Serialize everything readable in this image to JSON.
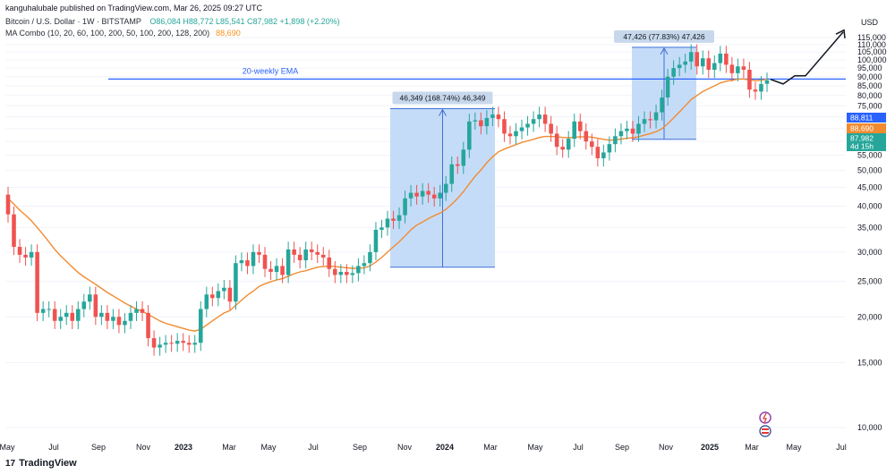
{
  "header": {
    "published": "kanguhalubale published on TradingView.com, Mar 26, 2025 09:27 UTC",
    "symbol": "Bitcoin / U.S. Dollar · 1W · BITSTAMP",
    "ohlc": {
      "O": "86,084",
      "H": "88,772",
      "L": "85,541",
      "C": "87,982",
      "change": "+1,898 (+2.20%)"
    },
    "ma_label": "MA Combo (10, 20, 60, 100, 200, 50, 100, 200, 128, 200)",
    "ma_value": "88,690"
  },
  "brand": {
    "name": "TradingView",
    "logo": "17"
  },
  "icons": {
    "lightning": "lightning-icon",
    "flag": "us-flag-icon"
  },
  "colors": {
    "up": "#26a69a",
    "down": "#ef5350",
    "ema": "#f28b30",
    "line": "#2962ff",
    "box": "#bbd6f7",
    "boxEdge": "#3f6fd8"
  },
  "chart_data": {
    "type": "candlestick",
    "y_axis": {
      "unit": "USD",
      "min": 10000,
      "max": 115000,
      "ticks": [
        115000,
        110000,
        105000,
        100000,
        95000,
        90000,
        85000,
        80000,
        75000,
        70000,
        65000,
        60000,
        55000,
        50000,
        45000,
        40000,
        35000,
        30000,
        25000,
        20000,
        15000,
        10000
      ],
      "tick_labels": [
        "115,000",
        "110,000",
        "105,000",
        "100,000",
        "95,000",
        "90,000",
        "85,000",
        "80,000",
        "75,000",
        "70,000",
        "65,000",
        "60,000",
        "55,000",
        "50,000",
        "45,000",
        "40,000",
        "35,000",
        "30,000",
        "25,000",
        "20,000",
        "15,000",
        "10,000"
      ]
    },
    "x_axis": {
      "labels": [
        "May",
        "Jul",
        "Sep",
        "Nov",
        "2023",
        "Mar",
        "May",
        "Jul",
        "Sep",
        "Nov",
        "2024",
        "Mar",
        "May",
        "Jul",
        "Sep",
        "Nov",
        "2025",
        "Mar",
        "May",
        "Jul"
      ],
      "bold": [
        "2023",
        "2024",
        "2025"
      ]
    },
    "price_tags": [
      {
        "label": "88,811",
        "color": "#2962ff"
      },
      {
        "label": "88,690",
        "color": "#f28b30"
      },
      {
        "label": "87,982",
        "color": "#26a69a"
      },
      {
        "label": "4d 15h",
        "color": "#26a69a"
      }
    ],
    "ema_line_label": "20-weekly EMA",
    "ema_line_value": 88700,
    "candles_close": [
      38000,
      31000,
      29500,
      29000,
      30000,
      20500,
      21000,
      21000,
      19500,
      20000,
      20500,
      19500,
      21000,
      22000,
      23000,
      20000,
      20500,
      19500,
      20000,
      19000,
      19500,
      20500,
      21000,
      20500,
      17500,
      16500,
      16800,
      17000,
      16900,
      17200,
      17000,
      16800,
      17000,
      21000,
      23000,
      22500,
      23500,
      24000,
      22000,
      28000,
      28500,
      27500,
      30000,
      29500,
      27000,
      26500,
      27500,
      26000,
      30500,
      29500,
      28500,
      30500,
      30000,
      29500,
      29000,
      27000,
      26000,
      26500,
      26000,
      26300,
      27500,
      28000,
      30000,
      34500,
      35000,
      37000,
      36500,
      37800,
      42000,
      43500,
      42500,
      44000,
      43000,
      42000,
      43500,
      46000,
      52000,
      51500,
      57000,
      68000,
      68500,
      66000,
      69500,
      71000,
      69000,
      63000,
      62000,
      64000,
      65500,
      67000,
      69000,
      71000,
      67000,
      63000,
      58000,
      57000,
      61000,
      68000,
      64000,
      60000,
      58000,
      54000,
      56000,
      59000,
      62000,
      64000,
      65000,
      63000,
      67000,
      69000,
      68500,
      72000,
      79000,
      90000,
      95000,
      97000,
      99000,
      105000,
      96000,
      101000,
      94000,
      98000,
      104000,
      97000,
      92000,
      96000,
      94000,
      83000,
      82000,
      86000,
      87982
    ],
    "candles_open": [
      43000,
      38000,
      31000,
      29500,
      29000,
      30000,
      20500,
      21000,
      21000,
      19500,
      20000,
      20500,
      19500,
      21000,
      22000,
      23000,
      20000,
      20500,
      19500,
      20000,
      19000,
      19500,
      20500,
      21000,
      20500,
      17500,
      16500,
      16800,
      17000,
      16900,
      17200,
      17000,
      16800,
      17000,
      21000,
      23000,
      22500,
      23500,
      24000,
      22000,
      28000,
      28500,
      27500,
      30000,
      29500,
      27000,
      26500,
      27500,
      26000,
      30500,
      29500,
      28500,
      30500,
      30000,
      29500,
      29000,
      27000,
      26000,
      26500,
      26000,
      26300,
      27500,
      28000,
      30000,
      34500,
      35000,
      37000,
      36500,
      37800,
      42000,
      43500,
      42500,
      44000,
      43000,
      42000,
      43500,
      46000,
      52000,
      51500,
      57000,
      68000,
      68500,
      66000,
      69500,
      71000,
      69000,
      63000,
      62000,
      64000,
      65500,
      67000,
      69000,
      71000,
      67000,
      63000,
      58000,
      57000,
      61000,
      68000,
      64000,
      60000,
      58000,
      54000,
      56000,
      59000,
      62000,
      64000,
      65000,
      63000,
      67000,
      69000,
      68500,
      72000,
      79000,
      90000,
      95000,
      97000,
      99000,
      105000,
      96000,
      101000,
      94000,
      98000,
      104000,
      97000,
      92000,
      96000,
      94000,
      83000,
      82000,
      86084
    ],
    "ema_series": [
      42000,
      40500,
      39000,
      37800,
      36500,
      35000,
      33500,
      32000,
      30500,
      29300,
      28300,
      27300,
      26400,
      25700,
      25100,
      24500,
      23900,
      23300,
      22800,
      22300,
      21800,
      21400,
      21000,
      20700,
      20300,
      19900,
      19500,
      19200,
      19000,
      18800,
      18600,
      18400,
      18300,
      18500,
      19000,
      19500,
      20000,
      20500,
      20800,
      21500,
      22200,
      22900,
      23500,
      24200,
      24600,
      24900,
      25200,
      25400,
      25800,
      26200,
      26500,
      26700,
      27000,
      27300,
      27400,
      27500,
      27400,
      27300,
      27200,
      27100,
      27100,
      27200,
      27500,
      28200,
      29000,
      30000,
      31000,
      32000,
      33200,
      34500,
      35500,
      36200,
      37000,
      37700,
      38300,
      39200,
      40500,
      42000,
      43800,
      46000,
      48200,
      50200,
      52500,
      54500,
      56200,
      57200,
      58000,
      58800,
      59600,
      60200,
      60800,
      61500,
      61900,
      61900,
      61800,
      61500,
      61400,
      61600,
      61800,
      61800,
      61600,
      61200,
      60800,
      60500,
      60600,
      60900,
      61200,
      61400,
      61800,
      62400,
      63000,
      63800,
      65000,
      67000,
      69500,
      72200,
      75000,
      78000,
      80000,
      82000,
      83500,
      85000,
      86500,
      87500,
      88000,
      88700,
      88700,
      88200,
      87800,
      88000,
      88690
    ],
    "boxes": [
      {
        "label": "46,349 (168.74%) 46,349",
        "from_price": 27300,
        "to_price": 73650
      },
      {
        "label": "47,426 (77.83%) 47,426",
        "from_price": 60800,
        "to_price": 108226
      }
    ],
    "projection_label": ""
  }
}
